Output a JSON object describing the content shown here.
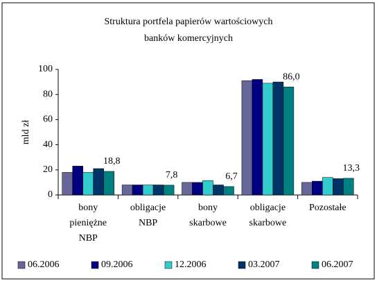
{
  "chart_data": {
    "type": "bar",
    "title": "Struktura portfela papierów wartościowych\nbanków komercyjnych",
    "y_label": "mld zł",
    "categories": [
      "bony\npieniężne\nNBP",
      "obligacje\nNBP",
      "bony\nskarbowe",
      "obligacje\nskarbowe",
      "Pozostałe"
    ],
    "series": [
      {
        "name": "06.2006",
        "color": "#666699",
        "values": [
          18,
          8,
          10,
          91,
          10
        ]
      },
      {
        "name": "09.2006",
        "color": "#000080",
        "values": [
          23,
          8,
          10,
          92,
          11
        ]
      },
      {
        "name": "12.2006",
        "color": "#33cccc",
        "values": [
          18,
          8,
          11.5,
          89,
          14
        ]
      },
      {
        "name": "03.2007",
        "color": "#003366",
        "values": [
          21,
          8,
          8,
          90,
          13
        ]
      },
      {
        "name": "06.2007",
        "color": "#008080",
        "values": [
          18.8,
          7.8,
          6.7,
          86.0,
          13.3
        ],
        "value_labels": [
          "18,8",
          "7,8",
          "6,7",
          "86,0",
          "13,3"
        ]
      }
    ],
    "ylim": [
      0,
      100
    ],
    "yticks": [
      0,
      20,
      40,
      60,
      80,
      100
    ],
    "grid": false,
    "legend": "bottom"
  }
}
